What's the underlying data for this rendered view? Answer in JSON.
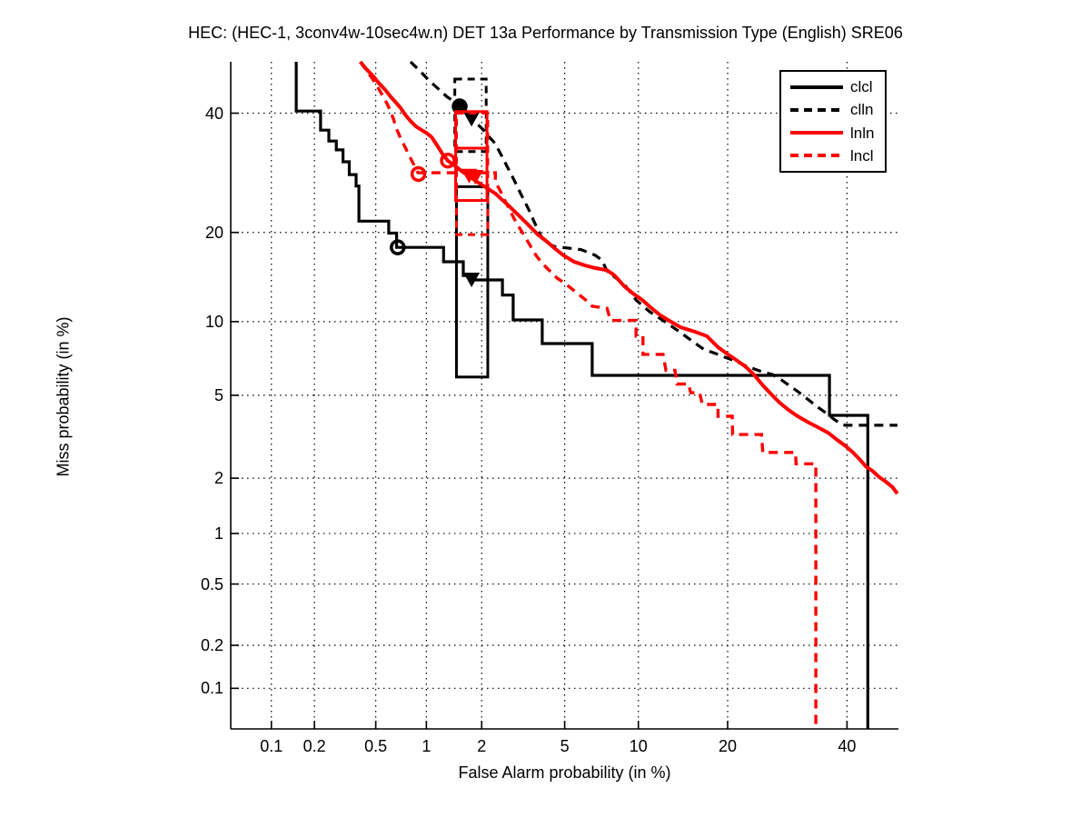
{
  "title": "HEC: (HEC-1, 3conv4w-10sec4w.n) DET 13a Performance by Transmission Type (English) SRE06",
  "legend": {
    "entries": [
      {
        "label": "clcl"
      },
      {
        "label": "clln"
      },
      {
        "label": "lnln"
      },
      {
        "label": "lncl"
      }
    ]
  },
  "chart_data": {
    "type": "line",
    "subtype": "DET-curve",
    "title": "HEC: (HEC-1, 3conv4w-10sec4w.n) DET 13a Performance by Transmission Type (English) SRE06",
    "xlabel": "False Alarm probability (in %)",
    "ylabel": "Miss probability (in %)",
    "scale": "normal-deviate-probit",
    "axis_range_pct": [
      0.05,
      50
    ],
    "x_tick_labels": [
      "0.1",
      "0.2",
      "0.5",
      "1",
      "2",
      "5",
      "10",
      "20",
      "40"
    ],
    "x_ticks": [
      0.1,
      0.2,
      0.5,
      1,
      2,
      5,
      10,
      20,
      40
    ],
    "y_tick_labels": [
      "40",
      "20",
      "10",
      "5",
      "2",
      "1",
      "0.5",
      "0.2",
      "0.1"
    ],
    "y_ticks": [
      40,
      20,
      10,
      5,
      2,
      1,
      0.5,
      0.2,
      0.1
    ],
    "grid": true,
    "legend_position": "top-right",
    "colors": {
      "black": "#000000",
      "red": "#ff0000"
    },
    "series": [
      {
        "name": "clcl",
        "color": "#000000",
        "style": "solid",
        "width": 3.2,
        "points": [
          [
            0.15,
            50
          ],
          [
            0.15,
            40.4
          ],
          [
            0.22,
            40.4
          ],
          [
            0.22,
            36.8
          ],
          [
            0.25,
            36.8
          ],
          [
            0.25,
            34.8
          ],
          [
            0.28,
            34.8
          ],
          [
            0.28,
            33.2
          ],
          [
            0.31,
            33.2
          ],
          [
            0.31,
            31.1
          ],
          [
            0.34,
            31.1
          ],
          [
            0.34,
            28.9
          ],
          [
            0.376,
            28.9
          ],
          [
            0.376,
            27
          ],
          [
            0.392,
            27
          ],
          [
            0.392,
            21.6
          ],
          [
            0.6,
            21.6
          ],
          [
            0.6,
            19.9
          ],
          [
            0.67,
            19.9
          ],
          [
            0.67,
            18
          ],
          [
            1.25,
            18
          ],
          [
            1.25,
            16.2
          ],
          [
            1.6,
            16.2
          ],
          [
            1.6,
            14.6
          ],
          [
            1.75,
            14.6
          ],
          [
            1.75,
            14.1
          ],
          [
            2.55,
            14.1
          ],
          [
            2.55,
            12.5
          ],
          [
            2.88,
            12.5
          ],
          [
            2.88,
            10.15
          ],
          [
            3.96,
            10.15
          ],
          [
            3.96,
            8.23
          ],
          [
            6.56,
            8.23
          ],
          [
            6.56,
            6.1
          ],
          [
            36.7,
            6.1
          ],
          [
            36.7,
            4.06
          ],
          [
            44,
            4.06
          ],
          [
            44,
            0.05
          ]
        ],
        "min_dcf_circle": [
          0.68,
          18.0
        ],
        "circle_filled": false,
        "act_dcf_triangle": [
          1.77,
          14.2
        ],
        "boxes": [
          {
            "fa": [
              1.47,
              2.15
            ],
            "miss": [
              6.0,
              26.9
            ]
          }
        ]
      },
      {
        "name": "clln",
        "color": "#000000",
        "style": "dashed",
        "width": 3.2,
        "points": [
          [
            0.81,
            50
          ],
          [
            0.92,
            48.2
          ],
          [
            1.03,
            46.4
          ],
          [
            1.16,
            44.8
          ],
          [
            1.3,
            43.2
          ],
          [
            1.43,
            42.2
          ],
          [
            1.53,
            41.3
          ],
          [
            1.64,
            40.3
          ],
          [
            1.76,
            39.2
          ],
          [
            1.89,
            38
          ],
          [
            2.02,
            37
          ],
          [
            2.15,
            35.8
          ],
          [
            2.3,
            34.7
          ],
          [
            2.42,
            33.4
          ],
          [
            2.55,
            31.9
          ],
          [
            2.69,
            30.3
          ],
          [
            2.83,
            28.8
          ],
          [
            2.98,
            27.3
          ],
          [
            3.13,
            25.8
          ],
          [
            3.29,
            24.4
          ],
          [
            3.46,
            23
          ],
          [
            3.63,
            21.5
          ],
          [
            3.82,
            20.1
          ],
          [
            4.0,
            18.9
          ],
          [
            4.5,
            18.1
          ],
          [
            5.2,
            17.9
          ],
          [
            5.9,
            17.7
          ],
          [
            6.75,
            17.0
          ],
          [
            7.2,
            16.4
          ],
          [
            7.55,
            15.1
          ],
          [
            8.2,
            14.3
          ],
          [
            8.85,
            13.6
          ],
          [
            9.8,
            12.0
          ],
          [
            11,
            10.9
          ],
          [
            12.3,
            10.1
          ],
          [
            13.75,
            9.3
          ],
          [
            15.3,
            8.5
          ],
          [
            16.9,
            7.8
          ],
          [
            18.7,
            7.45
          ],
          [
            19.9,
            7.2
          ],
          [
            21.1,
            7.0
          ],
          [
            22.5,
            6.7
          ],
          [
            23.8,
            6.5
          ],
          [
            25.2,
            6.3
          ],
          [
            26.7,
            6.15
          ],
          [
            28.2,
            5.83
          ],
          [
            29.7,
            5.48
          ],
          [
            31.3,
            5.13
          ],
          [
            32.9,
            4.77
          ],
          [
            34.5,
            4.43
          ],
          [
            36.2,
            4.14
          ],
          [
            37.5,
            3.9
          ],
          [
            38.7,
            3.72
          ],
          [
            39.6,
            3.65
          ],
          [
            49.8,
            3.65
          ]
        ],
        "min_dcf_circle": [
          1.53,
          41.3
        ],
        "circle_filled": true,
        "act_dcf_triangle": [
          1.77,
          39.0
        ],
        "boxes": [
          {
            "fa": [
              1.44,
              2.11
            ],
            "miss": [
              32.9,
              46.6
            ]
          }
        ]
      },
      {
        "name": "lnln",
        "color": "#ff0000",
        "style": "solid",
        "width": 4,
        "points": [
          [
            0.4,
            50
          ],
          [
            0.435,
            48.6
          ],
          [
            0.478,
            47.3
          ],
          [
            0.52,
            45.9
          ],
          [
            0.572,
            44.5
          ],
          [
            0.616,
            43.2
          ],
          [
            0.665,
            42
          ],
          [
            0.708,
            41
          ],
          [
            0.752,
            39.75
          ],
          [
            0.81,
            38.5
          ],
          [
            0.87,
            37.5
          ],
          [
            0.94,
            36.8
          ],
          [
            1.01,
            36.2
          ],
          [
            1.07,
            35.5
          ],
          [
            1.15,
            34
          ],
          [
            1.23,
            32.5
          ],
          [
            1.32,
            31.25
          ],
          [
            1.43,
            30.5
          ],
          [
            1.565,
            29.5
          ],
          [
            1.7,
            28.8
          ],
          [
            1.83,
            28
          ],
          [
            1.99,
            27.25
          ],
          [
            2.17,
            26.5
          ],
          [
            2.35,
            25.8
          ],
          [
            2.52,
            24.9
          ],
          [
            2.74,
            23.9
          ],
          [
            2.98,
            22.8
          ],
          [
            3.22,
            21.8
          ],
          [
            3.5,
            20.7
          ],
          [
            3.78,
            19.7
          ],
          [
            4.08,
            18.97
          ],
          [
            4.5,
            17.9
          ],
          [
            4.94,
            16.98
          ],
          [
            5.5,
            16.2
          ],
          [
            6.1,
            15.77
          ],
          [
            6.75,
            15.45
          ],
          [
            7.55,
            15.2
          ],
          [
            8.1,
            14.6
          ],
          [
            8.84,
            13.4
          ],
          [
            9.56,
            12.65
          ],
          [
            10.35,
            12
          ],
          [
            11.2,
            11.2
          ],
          [
            12.05,
            10.55
          ],
          [
            12.9,
            10.1
          ],
          [
            14.2,
            9.5
          ],
          [
            15.8,
            9.15
          ],
          [
            17.25,
            8.8
          ],
          [
            18.1,
            8.3
          ],
          [
            18.7,
            7.96
          ],
          [
            19.9,
            7.5
          ],
          [
            21.1,
            7.1
          ],
          [
            22.5,
            6.65
          ],
          [
            23.8,
            6.15
          ],
          [
            25.2,
            5.53
          ],
          [
            26.7,
            5.0
          ],
          [
            27.9,
            4.64
          ],
          [
            29.4,
            4.3
          ],
          [
            31,
            4.02
          ],
          [
            32.9,
            3.76
          ],
          [
            34.5,
            3.58
          ],
          [
            36.5,
            3.36
          ],
          [
            38.2,
            3.1
          ],
          [
            39.6,
            2.92
          ],
          [
            41,
            2.72
          ],
          [
            42.4,
            2.5
          ],
          [
            43.6,
            2.3
          ],
          [
            44.9,
            2.18
          ],
          [
            46.3,
            2.02
          ],
          [
            47.5,
            1.92
          ],
          [
            48.8,
            1.8
          ],
          [
            49.8,
            1.66
          ]
        ],
        "min_dcf_circle": [
          1.32,
          31.3
        ],
        "circle_filled": false,
        "act_dcf_triangle": [
          1.72,
          28.8
        ],
        "boxes": [
          {
            "fa": [
              1.455,
              2.13
            ],
            "miss": [
              33.5,
              40.3
            ]
          },
          {
            "fa": [
              1.455,
              2.13
            ],
            "miss": [
              24.7,
              33.5
            ]
          }
        ]
      },
      {
        "name": "lncl",
        "color": "#ff0000",
        "style": "dashed",
        "width": 3.4,
        "points": [
          [
            0.4,
            50
          ],
          [
            0.447,
            47.9
          ],
          [
            0.49,
            46.1
          ],
          [
            0.53,
            44.3
          ],
          [
            0.572,
            42.5
          ],
          [
            0.608,
            40.8
          ],
          [
            0.638,
            39.1
          ],
          [
            0.67,
            37
          ],
          [
            0.708,
            35.3
          ],
          [
            0.752,
            33.7
          ],
          [
            0.8,
            32.05
          ],
          [
            0.85,
            30.5
          ],
          [
            0.895,
            29.2
          ],
          [
            2.35,
            29.2
          ],
          [
            2.35,
            27.7
          ],
          [
            2.49,
            26.2
          ],
          [
            2.63,
            24.6
          ],
          [
            2.77,
            23.25
          ],
          [
            2.92,
            21.9
          ],
          [
            3.1,
            20.6
          ],
          [
            3.29,
            19.35
          ],
          [
            3.5,
            18.1
          ],
          [
            3.7,
            17.0
          ],
          [
            3.96,
            16.0
          ],
          [
            4.29,
            15.1
          ],
          [
            4.63,
            14.3
          ],
          [
            5.03,
            13.7
          ],
          [
            5.4,
            13.1
          ],
          [
            5.83,
            12.45
          ],
          [
            6.25,
            11.9
          ],
          [
            6.56,
            11.4
          ],
          [
            7.55,
            11.2
          ],
          [
            7.8,
            10.1
          ],
          [
            9.8,
            10.1
          ],
          [
            9.8,
            8.8
          ],
          [
            10.4,
            8.8
          ],
          [
            10.4,
            7.45
          ],
          [
            12.3,
            7.45
          ],
          [
            12.6,
            6.4
          ],
          [
            13.55,
            6.4
          ],
          [
            13.75,
            5.6
          ],
          [
            15.05,
            5.6
          ],
          [
            15.3,
            5.13
          ],
          [
            16.35,
            5.13
          ],
          [
            16.7,
            4.55
          ],
          [
            18.7,
            4.55
          ],
          [
            18.7,
            4.02
          ],
          [
            20.65,
            4.02
          ],
          [
            20.7,
            3.3
          ],
          [
            25,
            3.3
          ],
          [
            25.2,
            2.7
          ],
          [
            30.6,
            2.7
          ],
          [
            30.7,
            2.37
          ],
          [
            34.2,
            2.37
          ],
          [
            34.2,
            0.05
          ]
        ],
        "min_dcf_circle": [
          0.9,
          29.0
        ],
        "circle_filled": false,
        "act_dcf_triangle": [
          1.85,
          28.6
        ],
        "boxes": [
          {
            "fa": [
              1.47,
              2.15
            ],
            "miss": [
              19.7,
              40.0
            ]
          }
        ]
      }
    ]
  }
}
